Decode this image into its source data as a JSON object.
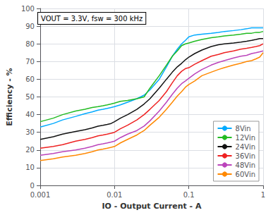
{
  "chart_data": {
    "type": "line",
    "annotation": "VOUT = 3.3V, fsw = 300 kHz",
    "xlabel": "IO - Output Current - A",
    "ylabel": "Efficiency - %",
    "log": "x",
    "grid": true,
    "legend": "lower right",
    "xlim": [
      0.001,
      1
    ],
    "xticks": [
      0.001,
      0.01,
      0.1,
      1
    ],
    "ylim": [
      0,
      100
    ],
    "yticks": [
      0,
      10,
      20,
      30,
      40,
      50,
      60,
      70,
      80,
      90,
      100
    ],
    "x": [
      0.001,
      0.0015,
      0.002,
      0.003,
      0.004,
      0.005,
      0.006,
      0.007,
      0.008,
      0.009,
      0.01,
      0.012,
      0.015,
      0.02,
      0.025,
      0.03,
      0.04,
      0.05,
      0.06,
      0.07,
      0.08,
      0.09,
      0.1,
      0.12,
      0.15,
      0.2,
      0.25,
      0.3,
      0.4,
      0.5,
      0.6,
      0.7,
      0.8,
      0.9,
      1.0
    ],
    "series": [
      {
        "name": "8Vin",
        "color": "#00AAFF",
        "values": [
          33,
          35,
          37,
          39,
          40.5,
          41.5,
          42.5,
          43,
          43.5,
          44,
          44.5,
          45.5,
          47,
          49,
          51,
          54,
          60,
          67,
          73,
          77,
          80,
          82,
          84,
          85,
          85.5,
          86,
          86.5,
          87,
          87.5,
          88,
          88.5,
          89,
          89,
          89,
          89
        ]
      },
      {
        "name": "12Vin",
        "color": "#22BB22",
        "values": [
          36,
          38,
          40,
          42,
          43,
          44,
          44.5,
          45,
          45.5,
          46,
          46.5,
          47.5,
          48,
          49,
          50,
          55,
          62,
          68,
          73,
          76,
          79,
          80,
          80.5,
          81.5,
          82.5,
          83.5,
          84,
          84.5,
          85,
          85.5,
          86,
          86,
          86.5,
          86.5,
          87
        ]
      },
      {
        "name": "24Vin",
        "color": "#111111",
        "values": [
          26,
          27.5,
          29,
          30.5,
          31.5,
          32.5,
          33.5,
          34,
          34.5,
          35,
          36,
          38,
          40,
          43,
          46,
          49,
          55,
          60,
          64,
          67,
          69,
          71,
          72.5,
          74.5,
          76.5,
          78.5,
          79.5,
          80,
          80.5,
          81,
          81.5,
          82,
          82.5,
          83,
          83
        ]
      },
      {
        "name": "36Vin",
        "color": "#EE2222",
        "values": [
          21,
          22,
          23,
          25,
          26,
          27,
          28,
          28.5,
          29,
          29.5,
          30,
          32,
          34,
          37,
          40,
          43,
          48,
          53,
          58,
          62,
          64.5,
          66,
          66.5,
          68.5,
          70.5,
          73,
          74,
          75,
          76,
          77,
          77.5,
          78,
          78.5,
          79,
          80
        ]
      },
      {
        "name": "48Vin",
        "color": "#BB44BB",
        "values": [
          17,
          18,
          19,
          20,
          21,
          22,
          23,
          23.5,
          24,
          24.5,
          25,
          27,
          29,
          31,
          33.5,
          36.5,
          42,
          47,
          51.5,
          55,
          57.5,
          59,
          60.5,
          63,
          65.5,
          68,
          69.5,
          70.5,
          72,
          73,
          73.5,
          74.5,
          75,
          75.5,
          76
        ]
      },
      {
        "name": "60Vin",
        "color": "#FF8800",
        "values": [
          14,
          15,
          16,
          17,
          18,
          19,
          20,
          20.5,
          21,
          21.5,
          22,
          24,
          26,
          28.5,
          31,
          34,
          38.5,
          43,
          47,
          50.5,
          53,
          55.5,
          57,
          59,
          62,
          64,
          65.5,
          66.5,
          68,
          69,
          70,
          70.5,
          71.5,
          72.5,
          75
        ]
      }
    ]
  }
}
